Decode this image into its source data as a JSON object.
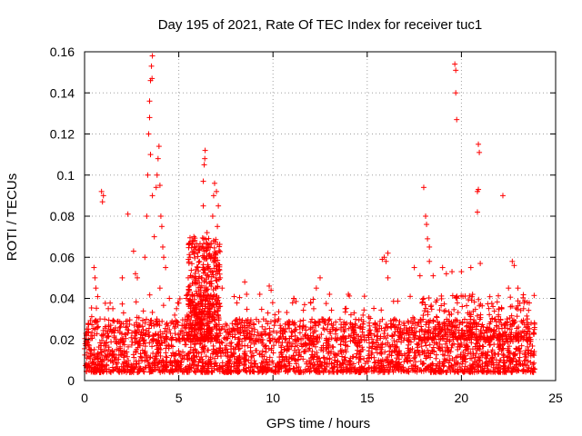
{
  "chart_data": {
    "type": "scatter",
    "title": "Day 195 of 2021, Rate Of TEC Index for receiver tuc1",
    "xlabel": "GPS time / hours",
    "ylabel": "ROTI / TECUs",
    "xlim": [
      0,
      25
    ],
    "ylim": [
      0,
      0.16
    ],
    "x_ticks": [
      0,
      5,
      10,
      15,
      20,
      25
    ],
    "y_ticks": [
      0,
      0.02,
      0.04,
      0.06,
      0.08,
      0.1,
      0.12,
      0.14,
      0.16
    ],
    "x_tick_labels": [
      "0",
      "5",
      "10",
      "15",
      "20",
      "25"
    ],
    "y_tick_labels": [
      "0",
      "0.02",
      "0.04",
      "0.06",
      "0.08",
      "0.1",
      "0.12",
      "0.14",
      "0.16"
    ],
    "grid": true,
    "marker": "+",
    "series_color": "#ff0000",
    "data_density": {
      "baseline": {
        "x_range": [
          0,
          23.9
        ],
        "y_range": [
          0.004,
          0.03
        ]
      },
      "note": "dense continuous baseline"
    },
    "points": [
      [
        0.5,
        0.055
      ],
      [
        0.55,
        0.05
      ],
      [
        0.6,
        0.045
      ],
      [
        0.9,
        0.092
      ],
      [
        0.95,
        0.087
      ],
      [
        1.0,
        0.09
      ],
      [
        1.5,
        0.035
      ],
      [
        2.0,
        0.05
      ],
      [
        2.3,
        0.081
      ],
      [
        2.6,
        0.063
      ],
      [
        2.7,
        0.052
      ],
      [
        2.8,
        0.05
      ],
      [
        3.2,
        0.06
      ],
      [
        3.3,
        0.08
      ],
      [
        3.35,
        0.1
      ],
      [
        3.4,
        0.12
      ],
      [
        3.45,
        0.136
      ],
      [
        3.5,
        0.146
      ],
      [
        3.55,
        0.153
      ],
      [
        3.6,
        0.158
      ],
      [
        3.58,
        0.147
      ],
      [
        3.45,
        0.128
      ],
      [
        3.5,
        0.11
      ],
      [
        3.6,
        0.09
      ],
      [
        3.7,
        0.07
      ],
      [
        3.8,
        0.094
      ],
      [
        3.85,
        0.1
      ],
      [
        3.9,
        0.108
      ],
      [
        3.95,
        0.114
      ],
      [
        4.0,
        0.095
      ],
      [
        4.05,
        0.08
      ],
      [
        4.1,
        0.075
      ],
      [
        4.15,
        0.065
      ],
      [
        4.2,
        0.06
      ],
      [
        4.3,
        0.055
      ],
      [
        4.0,
        0.045
      ],
      [
        4.5,
        0.04
      ],
      [
        5.4,
        0.04
      ],
      [
        5.5,
        0.05
      ],
      [
        5.6,
        0.06
      ],
      [
        5.7,
        0.068
      ],
      [
        5.8,
        0.07
      ],
      [
        5.9,
        0.064
      ],
      [
        6.0,
        0.055
      ],
      [
        6.1,
        0.058
      ],
      [
        6.2,
        0.05
      ],
      [
        6.3,
        0.097
      ],
      [
        6.35,
        0.105
      ],
      [
        6.4,
        0.112
      ],
      [
        6.38,
        0.108
      ],
      [
        6.3,
        0.085
      ],
      [
        6.5,
        0.072
      ],
      [
        6.6,
        0.065
      ],
      [
        6.7,
        0.06
      ],
      [
        6.8,
        0.08
      ],
      [
        6.85,
        0.09
      ],
      [
        6.9,
        0.096
      ],
      [
        7.0,
        0.092
      ],
      [
        7.1,
        0.085
      ],
      [
        7.05,
        0.075
      ],
      [
        6.95,
        0.06
      ],
      [
        7.2,
        0.05
      ],
      [
        7.3,
        0.045
      ],
      [
        8.5,
        0.048
      ],
      [
        8.6,
        0.042
      ],
      [
        9.3,
        0.042
      ],
      [
        9.8,
        0.046
      ],
      [
        9.9,
        0.044
      ],
      [
        10.1,
        0.032
      ],
      [
        10.3,
        0.03
      ],
      [
        11.1,
        0.04
      ],
      [
        12.0,
        0.038
      ],
      [
        12.3,
        0.045
      ],
      [
        12.5,
        0.05
      ],
      [
        13.0,
        0.042
      ],
      [
        14.0,
        0.042
      ],
      [
        15.8,
        0.059
      ],
      [
        15.9,
        0.06
      ],
      [
        16.0,
        0.058
      ],
      [
        16.1,
        0.062
      ],
      [
        16.1,
        0.05
      ],
      [
        17.5,
        0.055
      ],
      [
        17.8,
        0.051
      ],
      [
        18.0,
        0.094
      ],
      [
        18.1,
        0.08
      ],
      [
        18.15,
        0.076
      ],
      [
        18.2,
        0.069
      ],
      [
        18.3,
        0.065
      ],
      [
        18.3,
        0.058
      ],
      [
        18.5,
        0.051
      ],
      [
        19.0,
        0.055
      ],
      [
        19.2,
        0.052
      ],
      [
        19.5,
        0.053
      ],
      [
        19.65,
        0.154
      ],
      [
        19.7,
        0.151
      ],
      [
        19.7,
        0.14
      ],
      [
        19.75,
        0.127
      ],
      [
        20.0,
        0.053
      ],
      [
        20.5,
        0.055
      ],
      [
        20.9,
        0.115
      ],
      [
        20.95,
        0.111
      ],
      [
        20.85,
        0.092
      ],
      [
        20.9,
        0.093
      ],
      [
        20.85,
        0.082
      ],
      [
        21.0,
        0.057
      ],
      [
        22.2,
        0.09
      ],
      [
        22.5,
        0.045
      ],
      [
        22.7,
        0.058
      ],
      [
        22.8,
        0.056
      ],
      [
        23.0,
        0.045
      ],
      [
        23.3,
        0.035
      ],
      [
        23.5,
        0.03
      ],
      [
        23.7,
        0.028
      ]
    ]
  }
}
